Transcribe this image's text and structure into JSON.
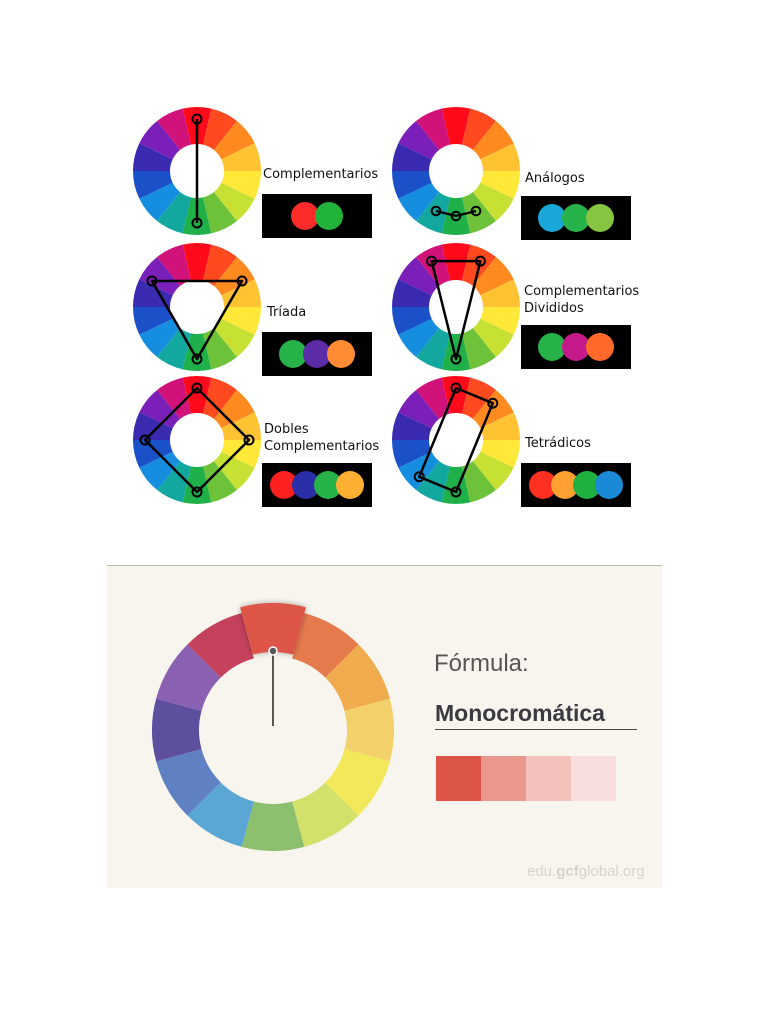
{
  "schemes": [
    {
      "id": "complementarios",
      "label_lines": [
        "Complementarios"
      ],
      "sample_colors": [
        "#ff2a2a",
        "#22b33a"
      ]
    },
    {
      "id": "analogos",
      "label_lines": [
        "Análogos"
      ],
      "sample_colors": [
        "#1aa7d8",
        "#27b24a",
        "#86c540"
      ]
    },
    {
      "id": "triada",
      "label_lines": [
        "Tríada"
      ],
      "sample_colors": [
        "#27b24a",
        "#5b2ba8",
        "#ff8c33"
      ]
    },
    {
      "id": "complementarios-divididos",
      "label_lines": [
        "Complementarios",
        "Divididos"
      ],
      "sample_colors": [
        "#27b24a",
        "#c41a8a",
        "#ff6a2a"
      ]
    },
    {
      "id": "dobles-complementarios",
      "label_lines": [
        "Dobles",
        "Complementarios"
      ],
      "sample_colors": [
        "#ff2020",
        "#2a2fa8",
        "#27b24a",
        "#ffb033"
      ]
    },
    {
      "id": "tetradicos",
      "label_lines": [
        "Tetrádicos"
      ],
      "sample_colors": [
        "#ff3020",
        "#ffa030",
        "#20b040",
        "#1a8ad8"
      ]
    }
  ],
  "wheel_colors": [
    "#ff0a1a",
    "#ff4a20",
    "#ff8a20",
    "#ffc233",
    "#ffe838",
    "#c6e033",
    "#6ec23a",
    "#1fb04a",
    "#12a8a0",
    "#168ee0",
    "#1a50c8",
    "#3a2ab0",
    "#7a20b8",
    "#d0127a"
  ],
  "monochrome": {
    "formula_label": "Fórmula:",
    "scheme_name": "Monocromática",
    "wheel_colors": [
      "#dc5546",
      "#e57a4c",
      "#f0ab4c",
      "#f2d06a",
      "#f2e85a",
      "#d3e16a",
      "#8cbf6e",
      "#5aa6d4",
      "#5f80c2",
      "#5e4f9e",
      "#8a60b2",
      "#c4425c"
    ],
    "selected_index": 0,
    "tones": [
      "#dd5548",
      "#ea978d",
      "#f3c2bc",
      "#f9dede"
    ],
    "watermark": {
      "prefix": "edu.",
      "brand": "gcf",
      "suffix": "global.org"
    }
  }
}
